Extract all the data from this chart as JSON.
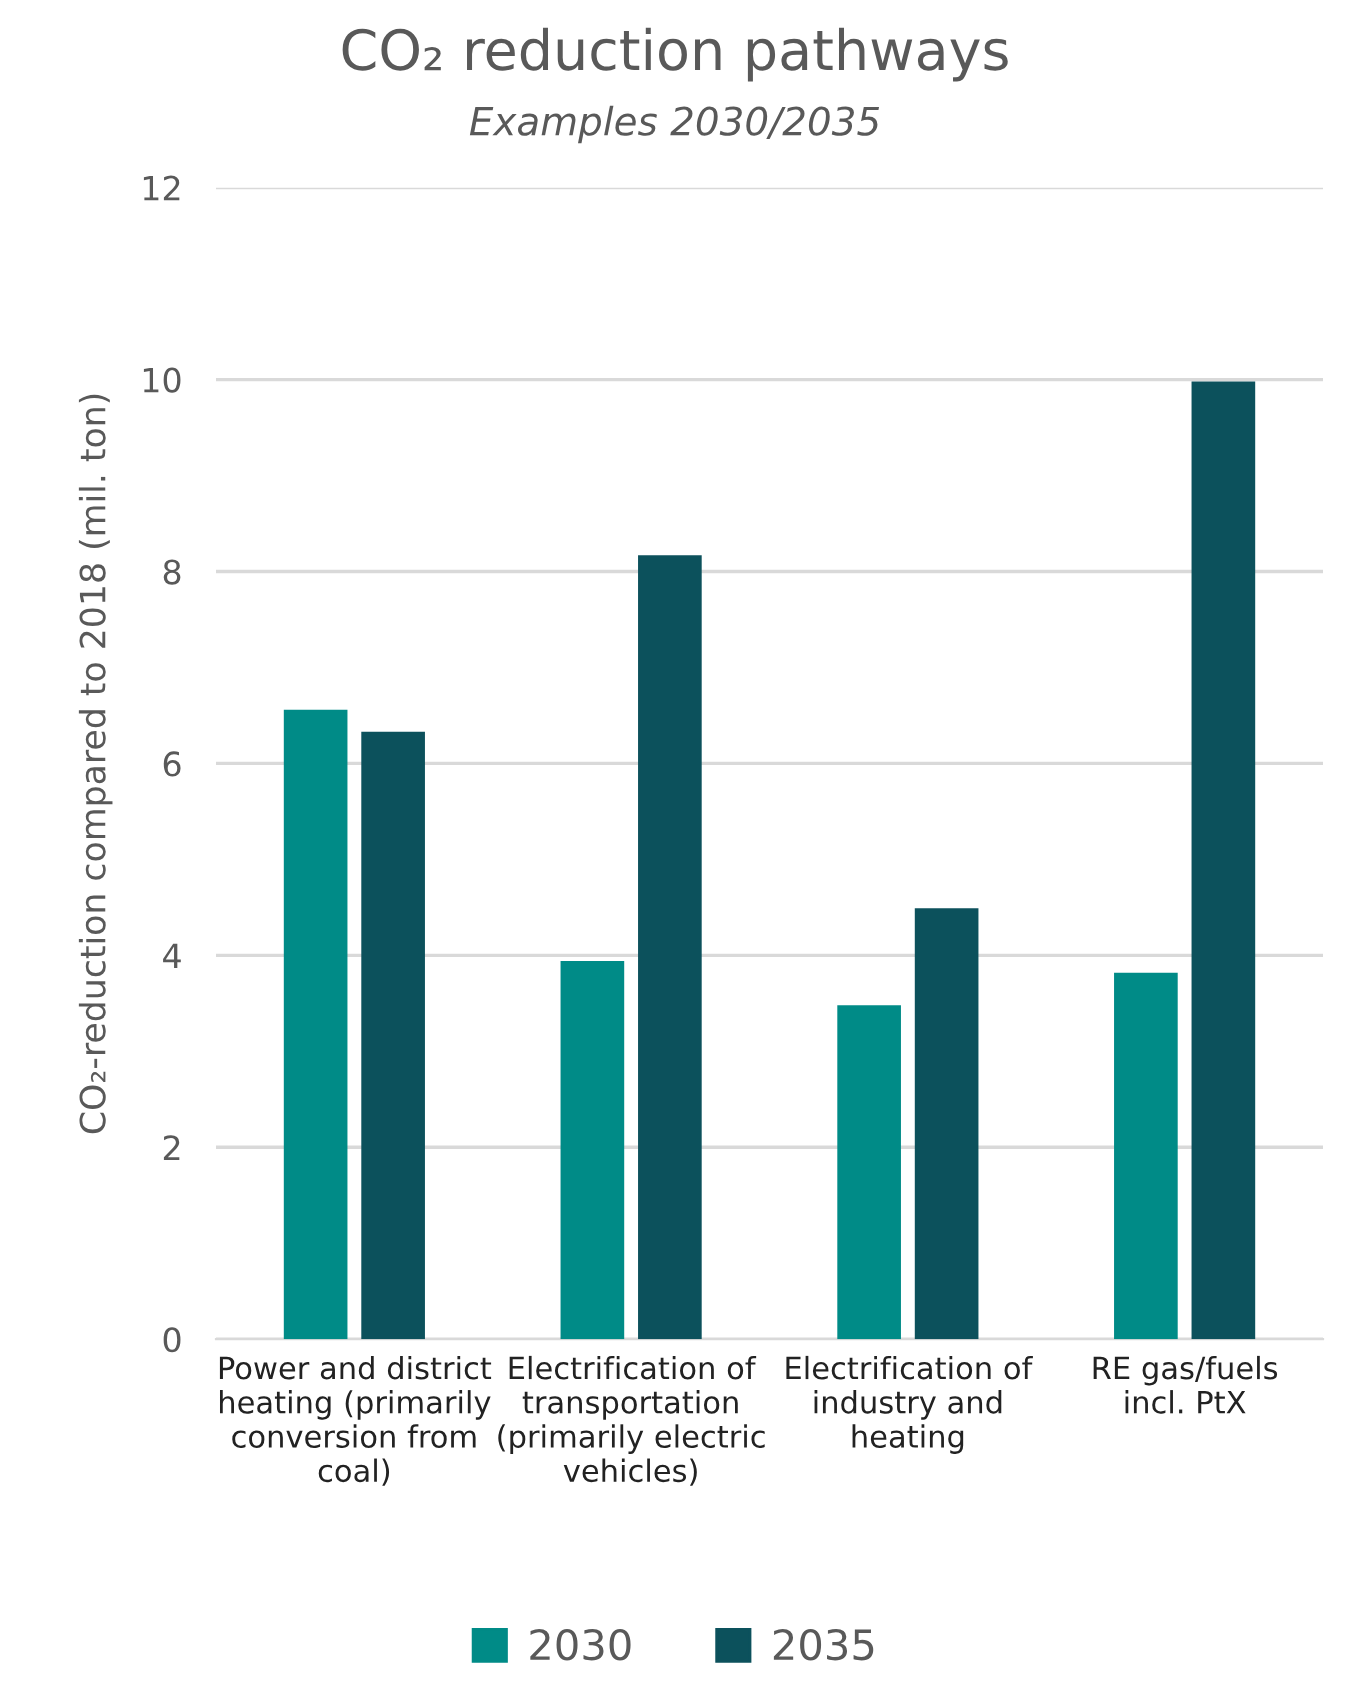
{
  "chart_data": {
    "type": "bar",
    "title": "CO₂ reduction pathways",
    "subtitle": "Examples 2030/2035",
    "ylabel": "CO₂-reduction compared to 2018 (mil. ton)",
    "categories": [
      "Power and district\nheating (primarily\nconversion from\ncoal)",
      "Electrification of\ntransportation\n(primarily electric\nvehicles)",
      "Electrification of\nindustry and\nheating",
      "RE gas/fuels\nincl. PtX"
    ],
    "series": [
      {
        "name": "2030",
        "color": "#008b87",
        "values": [
          6.56,
          3.94,
          3.48,
          3.82
        ]
      },
      {
        "name": "2035",
        "color": "#0c515c",
        "values": [
          6.33,
          8.17,
          4.49,
          9.98
        ]
      }
    ],
    "ylim": [
      0,
      12
    ],
    "yticks": [
      0,
      2,
      4,
      6,
      8,
      10,
      12
    ],
    "grid": "y",
    "legend": "bottom"
  }
}
